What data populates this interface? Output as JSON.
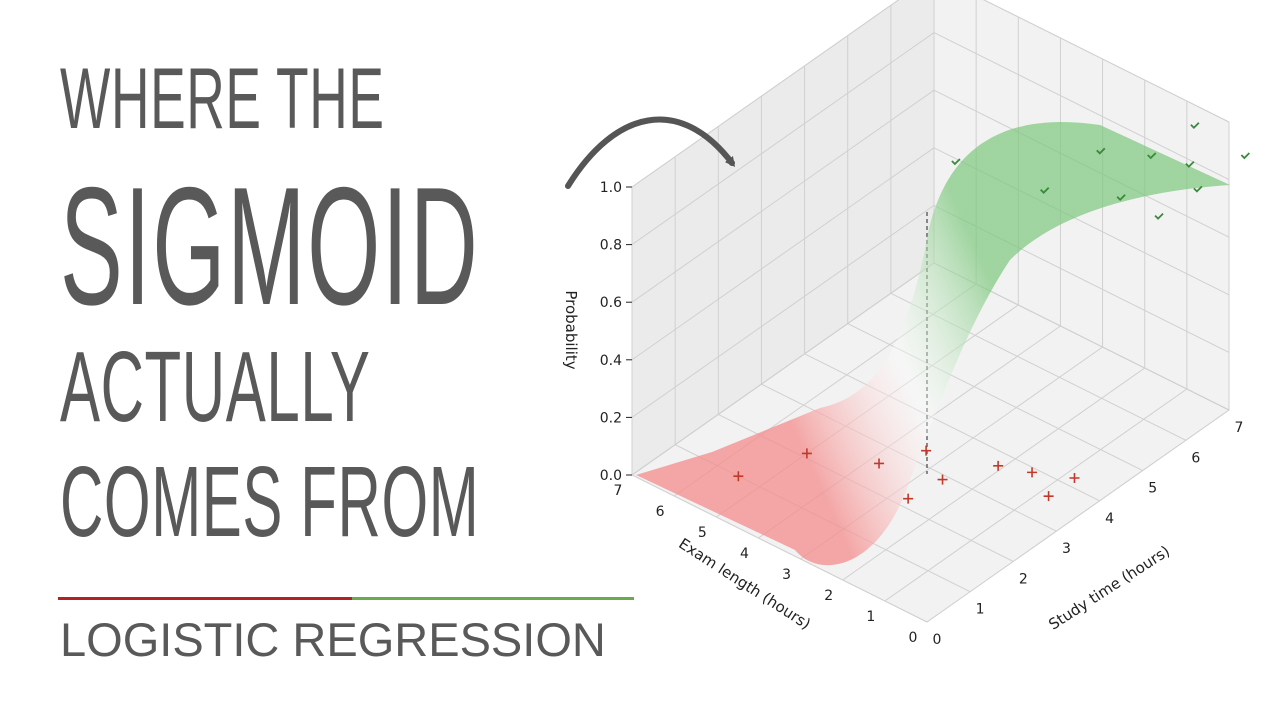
{
  "title": {
    "line1": "WHERE THE",
    "line2": "SIGMOID",
    "line3": "ACTUALLY",
    "line4": "COMES FROM"
  },
  "subtitle": "LOGISTIC REGRESSION",
  "colors": {
    "text": "#595959",
    "red": "#b22222",
    "green": "#6aaa4e",
    "surface_red": "#f58c8c",
    "surface_green": "#7cc77c"
  },
  "chart_data": {
    "type": "surface3d",
    "title": "",
    "xlabel": "Study time (hours)",
    "ylabel": "Exam length (hours)",
    "zlabel": "Probability",
    "xlim": [
      0,
      7
    ],
    "ylim": [
      0,
      7
    ],
    "zlim": [
      0,
      1
    ],
    "x_ticks": [
      "0",
      "1",
      "2",
      "3",
      "4",
      "5",
      "6",
      "7"
    ],
    "y_ticks": [
      "0",
      "1",
      "2",
      "3",
      "4",
      "5",
      "6",
      "7"
    ],
    "z_ticks": [
      "0.0",
      "0.2",
      "0.4",
      "0.6",
      "0.8",
      "1.0"
    ],
    "fail_points": [
      {
        "x": 1.0,
        "y": 5.5,
        "z": 0.0
      },
      {
        "x": 2.1,
        "y": 5.0,
        "z": 0.0
      },
      {
        "x": 2.6,
        "y": 3.8,
        "z": 0.0
      },
      {
        "x": 3.3,
        "y": 3.4,
        "z": 0.0
      },
      {
        "x": 2.2,
        "y": 2.7,
        "z": 0.0
      },
      {
        "x": 2.9,
        "y": 2.6,
        "z": 0.0
      },
      {
        "x": 3.7,
        "y": 2.1,
        "z": 0.0
      },
      {
        "x": 3.9,
        "y": 1.5,
        "z": 0.0
      },
      {
        "x": 3.6,
        "y": 0.8,
        "z": 0.0
      },
      {
        "x": 4.2,
        "y": 0.8,
        "z": 0.0
      }
    ],
    "pass_points": [
      {
        "x": 3.6,
        "y": 3.0,
        "z": 1.0
      },
      {
        "x": 3.9,
        "y": 1.2,
        "z": 1.0
      },
      {
        "x": 5.2,
        "y": 1.2,
        "z": 1.0
      },
      {
        "x": 5.6,
        "y": 0.4,
        "z": 1.0
      },
      {
        "x": 6.6,
        "y": 0.4,
        "z": 1.0
      },
      {
        "x": 6.5,
        "y": -0.9,
        "z": 1.0
      },
      {
        "x": 5.4,
        "y": -0.9,
        "z": 1.0
      },
      {
        "x": 4.5,
        "y": -0.9,
        "z": 1.0
      },
      {
        "x": 4.5,
        "y": 0.0,
        "z": 1.0
      },
      {
        "x": 5.8,
        "y": -0.3,
        "z": 1.0
      }
    ]
  }
}
